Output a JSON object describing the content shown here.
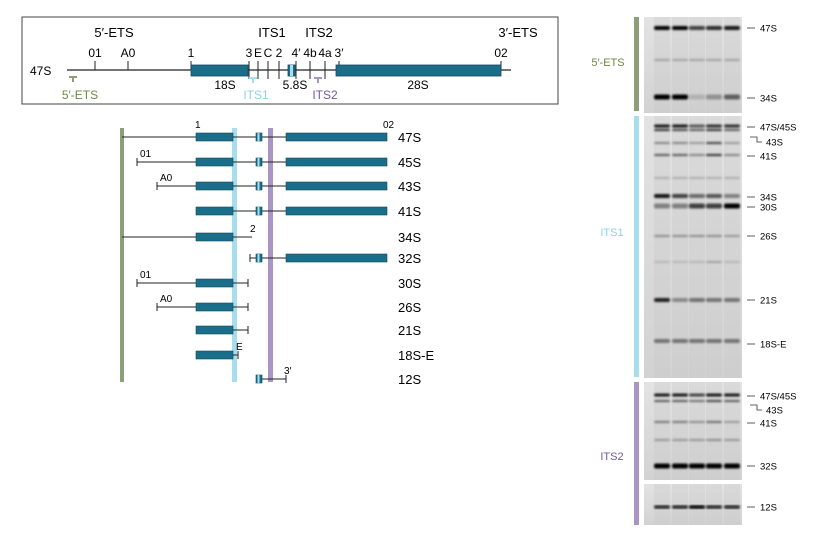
{
  "colors": {
    "block": "#1b6e8a",
    "ets_bar": "#8d9e78",
    "its1_bar": "#a8ddee",
    "its2_bar": "#a996c6",
    "ets_text": "#6c8a45",
    "its1_text": "#8fd0ea",
    "its2_text": "#6f5a9c"
  },
  "scheme": {
    "top_labels": [
      "5′-ETS",
      "ITS1",
      "ITS2",
      "3′-ETS"
    ],
    "site_labels": [
      "01",
      "A0",
      "1",
      "3",
      "E",
      "C",
      "2",
      "4′",
      "4b",
      "4a",
      "3′",
      "02"
    ],
    "precursor": "47S",
    "mature": [
      "18S",
      "5.8S",
      "28S"
    ],
    "probes": [
      "5′-ETS",
      "ITS1",
      "ITS2"
    ]
  },
  "species": [
    {
      "label": "47S",
      "left_tag": "",
      "right_tag": ""
    },
    {
      "label": "45S",
      "left_tag": "01",
      "right_tag": ""
    },
    {
      "label": "43S",
      "left_tag": "A0",
      "right_tag": ""
    },
    {
      "label": "41S",
      "left_tag": "",
      "right_tag": ""
    },
    {
      "label": "34S",
      "left_tag": "",
      "right_tag": "2"
    },
    {
      "label": "32S",
      "left_tag": "",
      "right_tag": ""
    },
    {
      "label": "30S",
      "left_tag": "01",
      "right_tag": ""
    },
    {
      "label": "26S",
      "left_tag": "A0",
      "right_tag": ""
    },
    {
      "label": "21S",
      "left_tag": "",
      "right_tag": ""
    },
    {
      "label": "18S-E",
      "left_tag": "",
      "right_tag": "E"
    },
    {
      "label": "12S",
      "left_tag": "",
      "right_tag": "3′"
    }
  ],
  "species_extra": {
    "row0_left": "1",
    "row0_right": "02"
  },
  "blots": [
    {
      "probe": "5′-ETS",
      "bands": [
        "47S",
        "34S"
      ]
    },
    {
      "probe": "ITS1",
      "bands": [
        "47S/45S",
        "43S",
        "41S",
        "34S",
        "30S",
        "26S",
        "21S",
        "18S-E"
      ]
    },
    {
      "probe": "ITS2",
      "bands": [
        "47S/45S",
        "43S",
        "41S",
        "32S",
        "12S"
      ]
    }
  ]
}
